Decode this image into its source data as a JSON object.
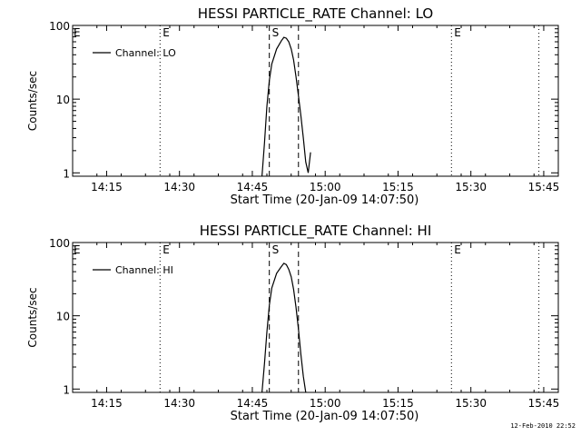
{
  "chart_data": [
    {
      "type": "line",
      "title": "HESSI PARTICLE_RATE Channel: LO",
      "xlabel": "Start Time (20-Jan-09 14:07:50)",
      "ylabel": "Counts/sec",
      "yscale": "log",
      "ylim": [
        0.9,
        100
      ],
      "xlim": [
        "14:08:00",
        "15:48:00"
      ],
      "x_ticks": [
        "14:15",
        "14:30",
        "14:45",
        "15:00",
        "15:15",
        "15:30",
        "15:45"
      ],
      "y_ticks": [
        "1",
        "10",
        "100"
      ],
      "legend": {
        "label": "Channel: LO",
        "position": "top-left"
      },
      "grid": false,
      "series": [
        {
          "name": "Channel: LO",
          "x": [
            "14:47:00",
            "14:47:30",
            "14:48:00",
            "14:48:30",
            "14:49:00",
            "14:50:00",
            "14:51:00",
            "14:51:30",
            "14:52:00",
            "14:52:30",
            "14:53:00",
            "14:53:30",
            "14:54:00",
            "14:54:30",
            "14:55:00",
            "14:55:30",
            "14:56:00",
            "14:56:30",
            "14:57:00"
          ],
          "y": [
            0.9,
            2.5,
            8,
            18,
            30,
            48,
            62,
            69,
            67,
            60,
            48,
            34,
            20,
            11,
            6,
            3,
            1.4,
            1.0,
            1.9
          ]
        }
      ],
      "vertical_markers": [
        {
          "x": "14:26:00",
          "style": "dotted",
          "label": "E"
        },
        {
          "x": "14:48:30",
          "style": "dashed",
          "label": "S"
        },
        {
          "x": "14:54:30",
          "style": "dashed",
          "label": ""
        },
        {
          "x": "15:26:00",
          "style": "dotted",
          "label": "E"
        },
        {
          "x": "15:44:00",
          "style": "dotted",
          "label": ""
        }
      ],
      "corner_label": "E"
    },
    {
      "type": "line",
      "title": "HESSI PARTICLE_RATE Channel: HI",
      "xlabel": "Start Time (20-Jan-09 14:07:50)",
      "ylabel": "Counts/sec",
      "yscale": "log",
      "ylim": [
        0.9,
        100
      ],
      "xlim": [
        "14:08:00",
        "15:48:00"
      ],
      "x_ticks": [
        "14:15",
        "14:30",
        "14:45",
        "15:00",
        "15:15",
        "15:30",
        "15:45"
      ],
      "y_ticks": [
        "1",
        "10",
        "100"
      ],
      "legend": {
        "label": "Channel: HI",
        "position": "top-left"
      },
      "grid": false,
      "series": [
        {
          "name": "Channel: HI",
          "x": [
            "14:47:00",
            "14:47:30",
            "14:48:00",
            "14:48:30",
            "14:49:00",
            "14:50:00",
            "14:51:00",
            "14:51:30",
            "14:52:00",
            "14:52:30",
            "14:53:00",
            "14:53:30",
            "14:54:00",
            "14:54:30",
            "14:55:00",
            "14:55:30",
            "14:56:00"
          ],
          "y": [
            0.9,
            2.2,
            6,
            14,
            24,
            38,
            47,
            52,
            50,
            43,
            34,
            23,
            13,
            6.5,
            3,
            1.5,
            0.9
          ]
        }
      ],
      "vertical_markers": [
        {
          "x": "14:26:00",
          "style": "dotted",
          "label": "E"
        },
        {
          "x": "14:48:30",
          "style": "dashed",
          "label": "S"
        },
        {
          "x": "14:54:30",
          "style": "dashed",
          "label": ""
        },
        {
          "x": "15:26:00",
          "style": "dotted",
          "label": "E"
        },
        {
          "x": "15:44:00",
          "style": "dotted",
          "label": ""
        }
      ],
      "corner_label": "E"
    }
  ],
  "footer": {
    "timestamp": "12-Feb-2010 22:52"
  }
}
